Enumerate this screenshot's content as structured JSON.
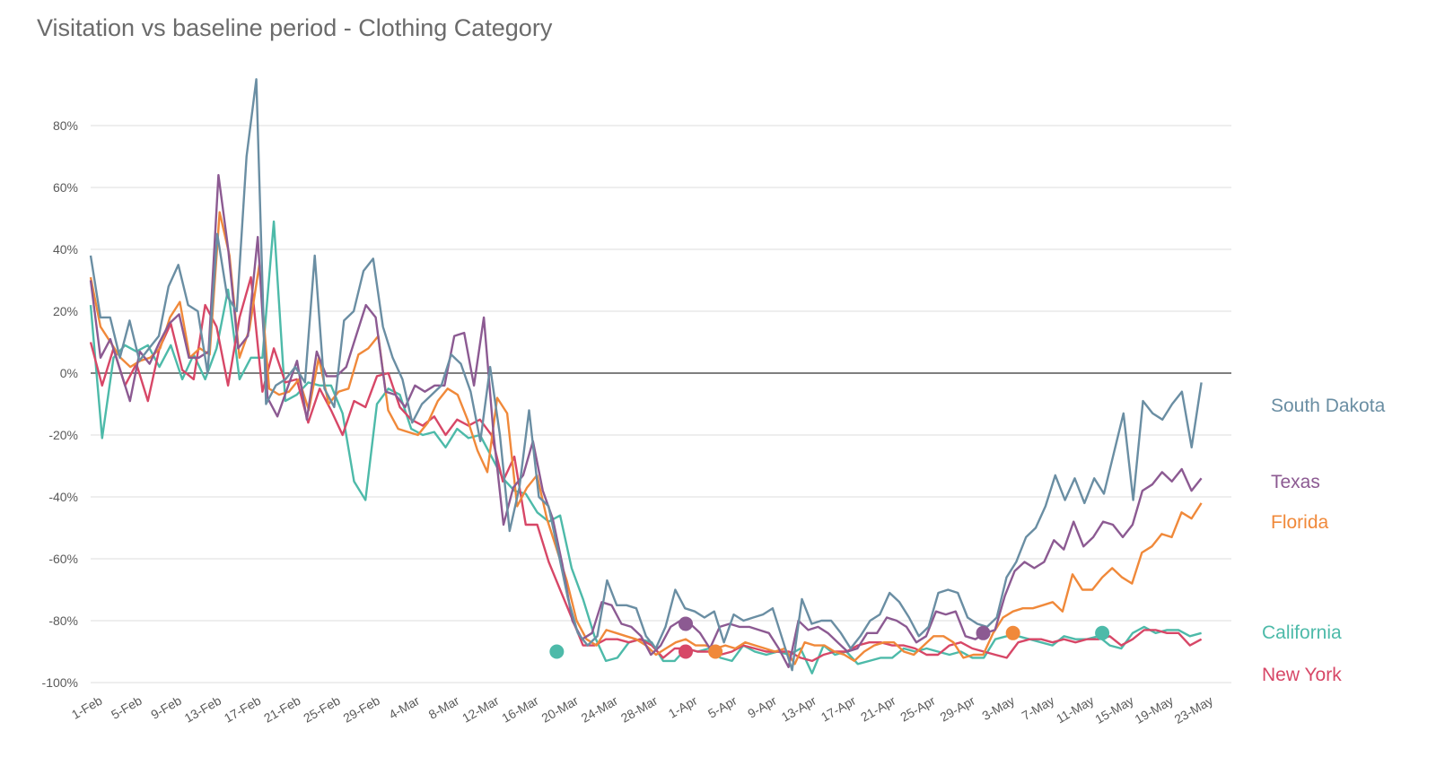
{
  "chart_data": {
    "type": "line",
    "title": "Visitation vs baseline period - Clothing Category",
    "xlabel": "",
    "ylabel": "",
    "ylim": [
      -100,
      95
    ],
    "y_ticks": [
      "80%",
      "60%",
      "40%",
      "20%",
      "0%",
      "-20%",
      "-40%",
      "-60%",
      "-80%",
      "-100%"
    ],
    "y_tick_values": [
      80,
      60,
      40,
      20,
      0,
      -20,
      -40,
      -60,
      -80,
      -100
    ],
    "x_tick_labels": [
      "1-Feb",
      "5-Feb",
      "9-Feb",
      "13-Feb",
      "17-Feb",
      "21-Feb",
      "25-Feb",
      "29-Feb",
      "4-Mar",
      "8-Mar",
      "12-Mar",
      "16-Mar",
      "20-Mar",
      "24-Mar",
      "28-Mar",
      "1-Apr",
      "5-Apr",
      "9-Apr",
      "13-Apr",
      "17-Apr",
      "21-Apr",
      "25-Apr",
      "29-Apr",
      "3-May",
      "7-May",
      "11-May",
      "15-May",
      "19-May",
      "23-May"
    ],
    "grid": "horizontal",
    "legend": "right, labels at series ends",
    "baseline": 0,
    "x_start": "1-Feb",
    "series": [
      {
        "name": "South Dakota",
        "color": "#6a8ea3",
        "values": [
          38,
          18,
          18,
          5,
          17,
          4,
          8,
          12,
          28,
          35,
          22,
          20,
          0,
          45,
          25,
          20,
          70,
          95,
          -10,
          -4,
          -2,
          2,
          -3,
          38,
          -5,
          -11,
          17,
          20,
          33,
          37,
          15,
          5,
          -2,
          -16,
          -10,
          -7,
          -4,
          6,
          3,
          -6,
          -22,
          2,
          -20,
          -51,
          -37,
          -12,
          -40,
          -43,
          -58,
          -73,
          -84,
          -88,
          -85,
          -67,
          -75,
          -75,
          -76,
          -85,
          -89,
          -82,
          -70,
          -76,
          -77,
          -79,
          -77,
          -87,
          -78,
          -80,
          -79,
          -78,
          -76,
          -86,
          -96,
          -73,
          -81,
          -80,
          -80,
          -84,
          -89,
          -85,
          -80,
          -78,
          -71,
          -74,
          -79,
          -85,
          -82,
          -71,
          -70,
          -71,
          -79,
          -81,
          -82,
          -79,
          -66,
          -61,
          -53,
          -50,
          -43,
          -33,
          -41,
          -34,
          -42,
          -34,
          -39,
          -26,
          -13,
          -41,
          -9,
          -13,
          -15,
          -10,
          -6,
          -24,
          -3
        ]
      },
      {
        "name": "Texas",
        "color": "#8c5a92",
        "values": [
          30,
          5,
          11,
          1,
          -9,
          7,
          3,
          10,
          16,
          19,
          5,
          5,
          7,
          64,
          40,
          8,
          12,
          44,
          -8,
          -14,
          -5,
          4,
          -15,
          7,
          -1,
          -1,
          2,
          12,
          22,
          18,
          -6,
          -7,
          -11,
          -4,
          -6,
          -4,
          -4,
          12,
          13,
          -4,
          18,
          -20,
          -49,
          -37,
          -33,
          -22,
          -38,
          -47,
          -62,
          -80,
          -86,
          -84,
          -74,
          -75,
          -81,
          -82,
          -85,
          -91,
          -88,
          -82,
          -80,
          -81,
          -84,
          -89,
          -82,
          -81,
          -82,
          -82,
          -83,
          -84,
          -89,
          -95,
          -80,
          -83,
          -82,
          -84,
          -87,
          -90,
          -89,
          -84,
          -84,
          -79,
          -80,
          -82,
          -87,
          -85,
          -77,
          -78,
          -77,
          -85,
          -86,
          -84,
          -83,
          -72,
          -64,
          -61,
          -63,
          -61,
          -54,
          -57,
          -48,
          -56,
          -53,
          -48,
          -49,
          -53,
          -49,
          -38,
          -36,
          -32,
          -35,
          -31,
          -38,
          -34
        ]
      },
      {
        "name": "Florida",
        "color": "#f0893a",
        "values": [
          31,
          15,
          10,
          5,
          2,
          4,
          5,
          8,
          18,
          23,
          5,
          8,
          6,
          52,
          38,
          5,
          14,
          35,
          -5,
          -7,
          -6,
          -2,
          -12,
          5,
          -10,
          -6,
          -5,
          6,
          8,
          12,
          -12,
          -18,
          -19,
          -20,
          -16,
          -9,
          -5,
          -7,
          -15,
          -25,
          -32,
          -8,
          -13,
          -43,
          -37,
          -33,
          -47,
          -57,
          -67,
          -80,
          -86,
          -88,
          -83,
          -84,
          -85,
          -86,
          -88,
          -91,
          -89,
          -87,
          -86,
          -88,
          -88,
          -89,
          -88,
          -89,
          -87,
          -88,
          -89,
          -90,
          -89,
          -94,
          -87,
          -88,
          -88,
          -90,
          -91,
          -93,
          -90,
          -88,
          -87,
          -87,
          -90,
          -91,
          -88,
          -85,
          -85,
          -87,
          -92,
          -91,
          -91,
          -84,
          -79,
          -77,
          -76,
          -76,
          -75,
          -74,
          -77,
          -65,
          -70,
          -70,
          -66,
          -63,
          -66,
          -68,
          -58,
          -56,
          -52,
          -53,
          -45,
          -47,
          -42
        ]
      },
      {
        "name": "California",
        "color": "#4dbaa9",
        "values": [
          22,
          -21,
          5,
          9,
          7,
          9,
          2,
          9,
          -2,
          6,
          -2,
          8,
          27,
          -2,
          5,
          5,
          49,
          -9,
          -7,
          -3,
          -4,
          -4,
          -13,
          -35,
          -41,
          -10,
          -5,
          -7,
          -18,
          -20,
          -19,
          -24,
          -18,
          -21,
          -20,
          -27,
          -34,
          -38,
          -39,
          -45,
          -48,
          -46,
          -63,
          -73,
          -85,
          -93,
          -92,
          -87,
          -86,
          -87,
          -93,
          -93,
          -89,
          -90,
          -89,
          -92,
          -93,
          -88,
          -90,
          -91,
          -90,
          -91,
          -89,
          -97,
          -88,
          -91,
          -90,
          -94,
          -93,
          -92,
          -92,
          -89,
          -90,
          -89,
          -90,
          -91,
          -90,
          -92,
          -92,
          -86,
          -85,
          -85,
          -86,
          -87,
          -88,
          -85,
          -86,
          -86,
          -85,
          -88,
          -89,
          -84,
          -82,
          -84,
          -83,
          -83,
          -85,
          -84
        ]
      },
      {
        "name": "New York",
        "color": "#d74767",
        "values": [
          10,
          -4,
          8,
          -4,
          3,
          -9,
          8,
          16,
          1,
          -2,
          22,
          15,
          -4,
          18,
          31,
          -6,
          8,
          -3,
          -2,
          -16,
          -5,
          -12,
          -20,
          -9,
          -11,
          -1,
          0,
          -11,
          -15,
          -17,
          -14,
          -20,
          -15,
          -17,
          -15,
          -20,
          -35,
          -27,
          -49,
          -49,
          -61,
          -70,
          -79,
          -88,
          -88,
          -86,
          -86,
          -87,
          -86,
          -88,
          -92,
          -89,
          -89,
          -90,
          -90,
          -91,
          -90,
          -88,
          -89,
          -90,
          -90,
          -90,
          -92,
          -93,
          -91,
          -90,
          -90,
          -88,
          -87,
          -87,
          -88,
          -88,
          -89,
          -91,
          -91,
          -88,
          -87,
          -89,
          -90,
          -91,
          -92,
          -87,
          -86,
          -86,
          -87,
          -86,
          -87,
          -86,
          -86,
          -85,
          -88,
          -86,
          -83,
          -83,
          -84,
          -84,
          -88,
          -86
        ]
      }
    ],
    "markers": [
      {
        "series": "California",
        "x": "19-Mar",
        "y": -90
      },
      {
        "series": "Texas",
        "x": "1-Apr",
        "y": -81
      },
      {
        "series": "New York",
        "x": "1-Apr",
        "y": -90
      },
      {
        "series": "Florida",
        "x": "4-Apr",
        "y": -90
      },
      {
        "series": "Texas",
        "x": "1-May",
        "y": -84
      },
      {
        "series": "Florida",
        "x": "4-May",
        "y": -84
      },
      {
        "series": "California",
        "x": "13-May",
        "y": -84
      }
    ]
  }
}
